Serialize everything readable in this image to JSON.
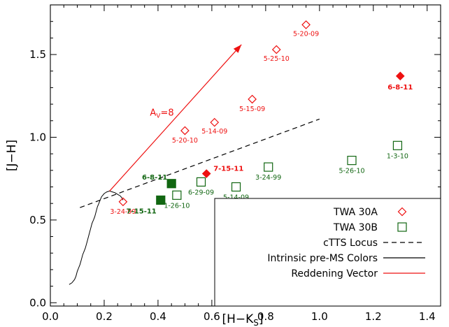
{
  "chart_data": {
    "type": "scatter",
    "xlabel_main": "[H−K",
    "xlabel_sub": "S",
    "xlabel_end": "]",
    "ylabel": "[J−H]",
    "xlim": [
      0.0,
      1.45
    ],
    "ylim": [
      -0.02,
      1.8
    ],
    "x_ticks": [
      "0.0",
      "0.2",
      "0.4",
      "0.6",
      "0.8",
      "1.0",
      "1.2",
      "1.4"
    ],
    "x_tick_values": [
      0.0,
      0.2,
      0.4,
      0.6,
      0.8,
      1.0,
      1.2,
      1.4
    ],
    "y_ticks": [
      "0.0",
      "0.5",
      "1.0",
      "1.5"
    ],
    "y_tick_values": [
      0.0,
      0.5,
      1.0,
      1.5
    ],
    "grid": false,
    "legend_position": "bottom-right",
    "colors": {
      "red": "#ee1111",
      "green": "#116611",
      "black": "#000000"
    },
    "series": [
      {
        "name": "TWA 30A",
        "marker": "diamond-open",
        "color": "#ee1111",
        "points": [
          {
            "x": 0.27,
            "y": 0.61,
            "label": "3-24-99",
            "filled": false
          },
          {
            "x": 0.5,
            "y": 1.04,
            "label": "5-20-10",
            "filled": false
          },
          {
            "x": 0.61,
            "y": 1.09,
            "label": "5-14-09",
            "filled": false
          },
          {
            "x": 0.75,
            "y": 1.23,
            "label": "5-15-09",
            "filled": false
          },
          {
            "x": 0.84,
            "y": 1.53,
            "label": "5-25-10",
            "filled": false
          },
          {
            "x": 0.95,
            "y": 1.68,
            "label": "5-20-09",
            "filled": false
          },
          {
            "x": 0.58,
            "y": 0.78,
            "label": "7-15-11",
            "filled": true
          },
          {
            "x": 1.3,
            "y": 1.37,
            "label": "6-8-11",
            "filled": true
          }
        ]
      },
      {
        "name": "TWA 30B",
        "marker": "square-open",
        "color": "#116611",
        "points": [
          {
            "x": 0.47,
            "y": 0.65,
            "label": "1-26-10",
            "filled": false
          },
          {
            "x": 0.56,
            "y": 0.73,
            "label": "6-29-09",
            "filled": false
          },
          {
            "x": 0.69,
            "y": 0.7,
            "label": "5-14-09",
            "filled": false
          },
          {
            "x": 0.81,
            "y": 0.82,
            "label": "3-24-99",
            "filled": false
          },
          {
            "x": 1.12,
            "y": 0.86,
            "label": "5-26-10",
            "filled": false
          },
          {
            "x": 1.29,
            "y": 0.95,
            "label": "1-3-10",
            "filled": false
          },
          {
            "x": 0.41,
            "y": 0.62,
            "label": "7-15-11",
            "filled": true
          },
          {
            "x": 0.45,
            "y": 0.72,
            "label": "6-8-11",
            "filled": true
          }
        ]
      }
    ],
    "ctts_locus": {
      "name": "cTTS Locus",
      "points": [
        [
          0.11,
          0.575
        ],
        [
          1.0,
          1.11
        ]
      ]
    },
    "intrinsic_colors": {
      "name": "Intrinsic pre-MS Colors",
      "points": [
        [
          0.07,
          0.11
        ],
        [
          0.08,
          0.12
        ],
        [
          0.09,
          0.14
        ],
        [
          0.095,
          0.16
        ],
        [
          0.1,
          0.19
        ],
        [
          0.105,
          0.21
        ],
        [
          0.11,
          0.23
        ],
        [
          0.115,
          0.26
        ],
        [
          0.12,
          0.29
        ],
        [
          0.125,
          0.31
        ],
        [
          0.13,
          0.33
        ],
        [
          0.135,
          0.36
        ],
        [
          0.14,
          0.39
        ],
        [
          0.145,
          0.42
        ],
        [
          0.15,
          0.45
        ],
        [
          0.155,
          0.48
        ],
        [
          0.16,
          0.5
        ],
        [
          0.165,
          0.52
        ],
        [
          0.17,
          0.55
        ],
        [
          0.175,
          0.58
        ],
        [
          0.18,
          0.6
        ],
        [
          0.185,
          0.62
        ],
        [
          0.19,
          0.64
        ],
        [
          0.2,
          0.66
        ],
        [
          0.21,
          0.67
        ],
        [
          0.22,
          0.675
        ],
        [
          0.23,
          0.67
        ],
        [
          0.24,
          0.665
        ],
        [
          0.25,
          0.655
        ],
        [
          0.26,
          0.645
        ],
        [
          0.265,
          0.635
        ],
        [
          0.27,
          0.62
        ]
      ]
    },
    "reddening_vector": {
      "name": "Reddening Vector",
      "label_main": "A",
      "label_sub": "V",
      "label_end": "=8",
      "from": [
        0.22,
        0.675
      ],
      "to": [
        0.71,
        1.56
      ],
      "label_at": [
        0.37,
        1.13
      ]
    },
    "legend": [
      {
        "label": "TWA 30A",
        "symbol": "diamond-open",
        "color": "#ee1111"
      },
      {
        "label": "TWA 30B",
        "symbol": "square-open",
        "color": "#116611"
      },
      {
        "label": "cTTS Locus",
        "symbol": "dashed-line",
        "color": "#000000"
      },
      {
        "label": "Intrinsic pre-MS Colors",
        "symbol": "solid-line",
        "color": "#000000"
      },
      {
        "label": "Reddening Vector",
        "symbol": "solid-line",
        "color": "#ee1111"
      }
    ]
  }
}
